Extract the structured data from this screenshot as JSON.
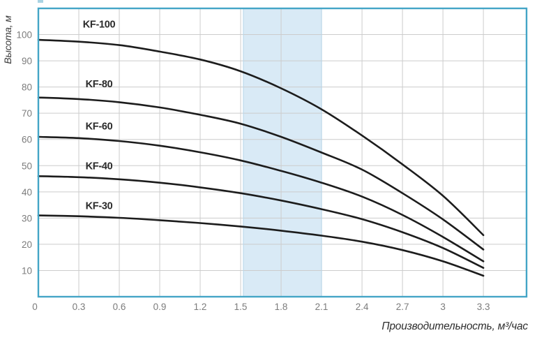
{
  "figure": {
    "background": "#ffffff",
    "border_color": "#44a5c6",
    "grid_color": "#cccccc",
    "curve_color": "#1c1c1c",
    "tick_color": "#7c7c7c",
    "series_label_color": "#2b2b2b",
    "band_color": "#d9eaf6",
    "band_edge_color": "#b7d6ea"
  },
  "chart_data": {
    "type": "line",
    "title": "",
    "xlabel": "Производительность, м³/час",
    "ylabel": "Высота, м",
    "xlim": [
      0,
      3.62
    ],
    "ylim": [
      0,
      110
    ],
    "grid": true,
    "legend_position": "inline-labels",
    "highlight_band": {
      "from": 1.52,
      "to": 2.1
    },
    "xticks": [
      {
        "v": 0,
        "label": "0"
      },
      {
        "v": 0.3,
        "label": "0.3"
      },
      {
        "v": 0.6,
        "label": "0.6"
      },
      {
        "v": 0.9,
        "label": "0.9"
      },
      {
        "v": 1.2,
        "label": "1.2"
      },
      {
        "v": 1.5,
        "label": "1.5"
      },
      {
        "v": 1.8,
        "label": "1.8"
      },
      {
        "v": 2.1,
        "label": "2.1"
      },
      {
        "v": 2.4,
        "label": "2.4"
      },
      {
        "v": 2.7,
        "label": "2.7"
      },
      {
        "v": 3,
        "label": "3"
      },
      {
        "v": 3.3,
        "label": "3.3"
      }
    ],
    "yticks": [
      {
        "v": 10,
        "label": "10"
      },
      {
        "v": 20,
        "label": "20"
      },
      {
        "v": 30,
        "label": "30"
      },
      {
        "v": 40,
        "label": "40"
      },
      {
        "v": 50,
        "label": "50"
      },
      {
        "v": 60,
        "label": "60"
      },
      {
        "v": 70,
        "label": "70"
      },
      {
        "v": 80,
        "label": "80"
      },
      {
        "v": 90,
        "label": "90"
      },
      {
        "v": 100,
        "label": "100"
      }
    ],
    "x": [
      0,
      0.3,
      0.6,
      0.9,
      1.2,
      1.5,
      1.8,
      2.1,
      2.4,
      2.7,
      3.0,
      3.3
    ],
    "series": [
      {
        "name": "KF-100",
        "label_x": 0.45,
        "label_y": 104,
        "values": [
          98,
          97.3,
          96,
          93.5,
          90.5,
          86,
          79.5,
          71.5,
          61.5,
          50.5,
          38.5,
          23.5
        ]
      },
      {
        "name": "KF-80",
        "label_x": 0.45,
        "label_y": 81.3,
        "values": [
          76,
          75.4,
          74.2,
          72.2,
          69.4,
          66,
          61,
          55,
          48.5,
          39.5,
          29.5,
          18
        ]
      },
      {
        "name": "KF-60",
        "label_x": 0.45,
        "label_y": 65.1,
        "values": [
          61,
          60.5,
          59.4,
          57.6,
          55.1,
          52,
          48,
          43.5,
          38.2,
          31.2,
          22.8,
          13.5
        ]
      },
      {
        "name": "KF-40",
        "label_x": 0.45,
        "label_y": 49.9,
        "values": [
          46,
          45.6,
          44.8,
          43.5,
          41.7,
          39.5,
          36.7,
          33.4,
          29.6,
          24.6,
          18.6,
          11
        ]
      },
      {
        "name": "KF-30",
        "label_x": 0.45,
        "label_y": 34.7,
        "values": [
          31,
          30.7,
          30.1,
          29.2,
          28.1,
          26.8,
          25.2,
          23.3,
          21.0,
          17.8,
          13.5,
          8
        ]
      }
    ]
  }
}
